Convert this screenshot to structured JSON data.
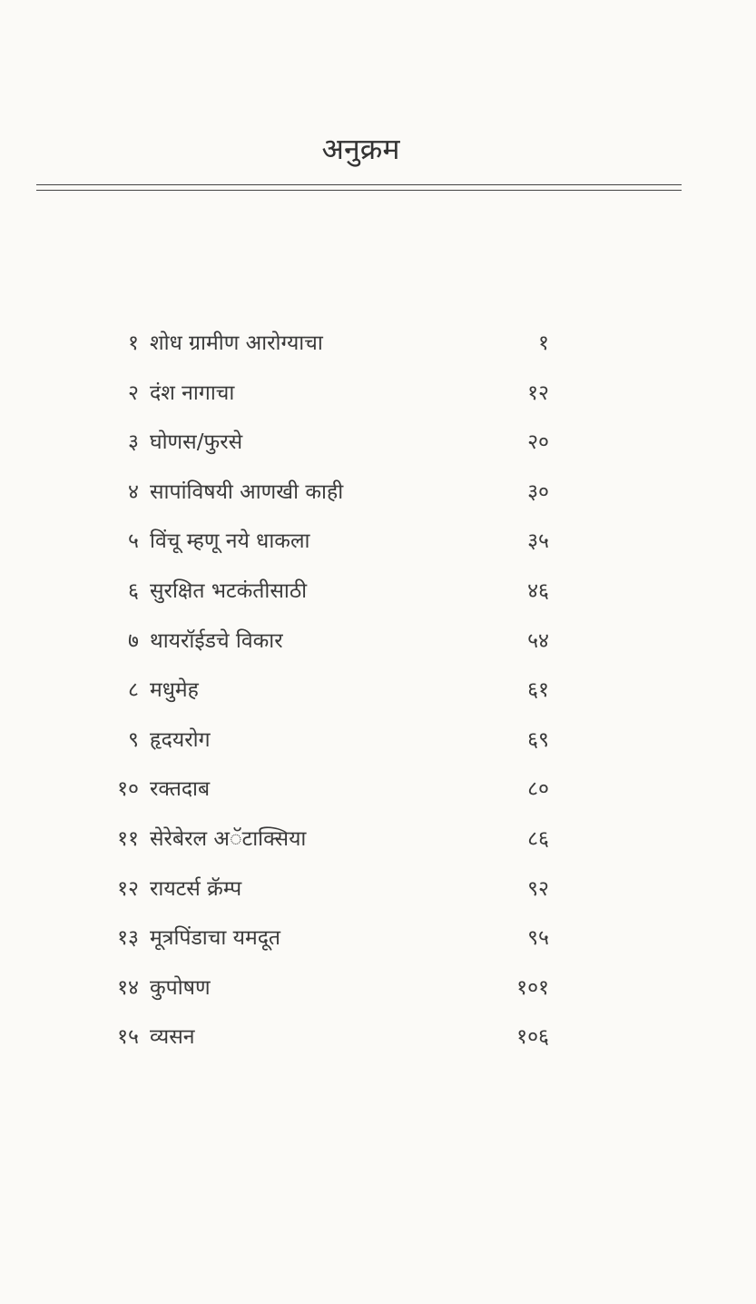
{
  "title": "अनुक्रम",
  "entries": [
    {
      "no": "१",
      "name": "शोध ग्रामीण आरोग्याचा",
      "page": "१"
    },
    {
      "no": "२",
      "name": "दंश नागाचा",
      "page": "१२"
    },
    {
      "no": "३",
      "name": "घोणस/फुरसे",
      "page": "२०"
    },
    {
      "no": "४",
      "name": "सापांविषयी आणखी काही",
      "page": "३०"
    },
    {
      "no": "५",
      "name": "विंचू म्हणू नये धाकला",
      "page": "३५"
    },
    {
      "no": "६",
      "name": "सुरक्षित भटकंतीसाठी",
      "page": "४६"
    },
    {
      "no": "७",
      "name": "थायरॉईडचे विकार",
      "page": "५४"
    },
    {
      "no": "८",
      "name": "मधुमेह",
      "page": "६१"
    },
    {
      "no": "९",
      "name": "हृदयरोग",
      "page": "६९"
    },
    {
      "no": "१०",
      "name": "रक्तदाब",
      "page": "८०"
    },
    {
      "no": "११",
      "name": "सेरेबेरल अॅटाक्सिया",
      "page": "८६"
    },
    {
      "no": "१२",
      "name": "रायटर्स क्रॅम्प",
      "page": "९२"
    },
    {
      "no": "१३",
      "name": "मूत्रपिंडाचा यमदूत",
      "page": "९५"
    },
    {
      "no": "१४",
      "name": "कुपोषण",
      "page": "१०१"
    },
    {
      "no": "१५",
      "name": "व्यसन",
      "page": "१०६"
    }
  ]
}
